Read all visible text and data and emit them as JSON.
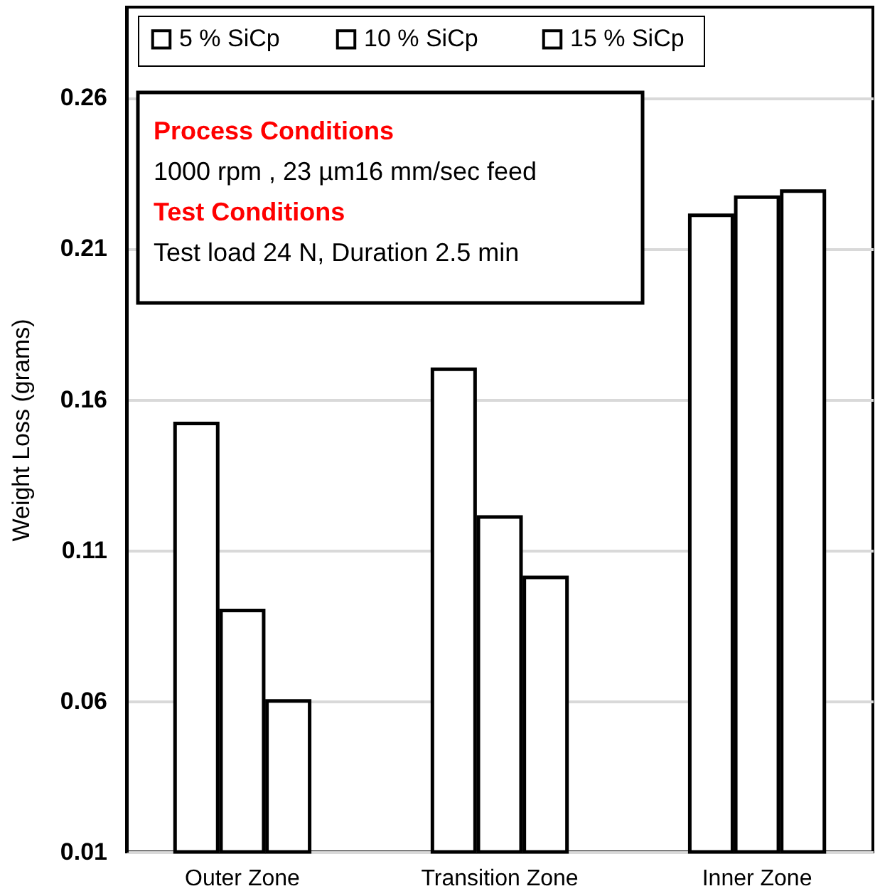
{
  "chart_data": {
    "type": "bar",
    "ylabel": "Weight Loss  (grams)",
    "categories": [
      "Outer Zone",
      "Transition Zone",
      "Inner Zone"
    ],
    "series": [
      {
        "name": "5 % SiCp",
        "color": "#ffffff",
        "values": [
          0.152,
          0.17,
          0.221
        ]
      },
      {
        "name": "10  % SiCp",
        "color": "#ffffff",
        "values": [
          0.09,
          0.121,
          0.227
        ]
      },
      {
        "name": "15  % SiCp",
        "color": "#ffffff",
        "values": [
          0.06,
          0.101,
          0.229
        ]
      }
    ],
    "ylim": [
      0.01,
      0.29
    ],
    "yticks": [
      0.01,
      0.06,
      0.11,
      0.16,
      0.21,
      0.26
    ],
    "grid": "y",
    "legend": "top",
    "annotations": [
      "Process Conditions",
      "1000 rpm , 23 µm16 mm/sec feed",
      "Test Conditions",
      "Test load 24 N, Duration 2.5 min"
    ]
  }
}
